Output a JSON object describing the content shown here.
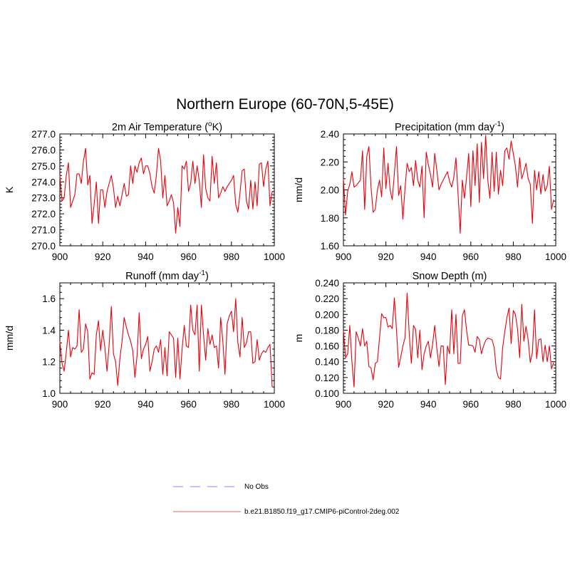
{
  "figure": {
    "title": "Northern Europe (60-70N,5-45E)"
  },
  "legend": {
    "entries": [
      {
        "label": "No Obs",
        "color": "#9a9af0",
        "dash": true
      },
      {
        "label": "b.e21.B1850.f19_g17.CMIP6-piControl-2deg.002",
        "color": "#f08080",
        "dash": false
      }
    ]
  },
  "series_color": "#e8000b",
  "chart_data": [
    {
      "type": "line",
      "title_main": "2m Air Temperature (",
      "title_sup": "o",
      "title_end": "K)",
      "ylabel": "K",
      "xlim": [
        900,
        1000
      ],
      "ylim": [
        270.0,
        277.0
      ],
      "xticks": [
        900,
        920,
        940,
        960,
        980,
        1000
      ],
      "yticks": [
        270.0,
        271.0,
        272.0,
        273.0,
        274.0,
        275.0,
        276.0,
        277.0
      ],
      "ydecimals": 1,
      "x_start": 900,
      "values": [
        274.4,
        272.8,
        273.0,
        274.4,
        275.2,
        272.4,
        272.8,
        273.2,
        274.5,
        274.5,
        273.9,
        275.3,
        276.1,
        273.8,
        274.4,
        271.4,
        272.6,
        274.0,
        271.4,
        273.5,
        273.5,
        272.4,
        273.4,
        273.9,
        274.4,
        273.6,
        272.4,
        273.1,
        272.5,
        273.2,
        273.9,
        273.1,
        273.2,
        275.0,
        273.9,
        275.0,
        274.6,
        275.2,
        275.5,
        274.5,
        275.0,
        275.0,
        274.5,
        273.7,
        273.3,
        274.4,
        276.1,
        275.3,
        273.0,
        274.4,
        272.5,
        272.8,
        273.2,
        272.7,
        270.8,
        272.4,
        271.2,
        275.0,
        274.8,
        275.3,
        273.4,
        273.9,
        275.3,
        273.9,
        275.0,
        274.1,
        272.4,
        275.7,
        273.6,
        273.0,
        272.8,
        275.6,
        273.9,
        275.2,
        273.0,
        273.3,
        273.7,
        273.4,
        273.7,
        273.9,
        274.1,
        274.4,
        272.6,
        272.1,
        273.3,
        274.7,
        274.8,
        272.8,
        272.3,
        274.1,
        272.3,
        274.0,
        272.5,
        275.1,
        275.2,
        273.7,
        274.8,
        275.3,
        272.5,
        273.4
      ]
    },
    {
      "type": "line",
      "title_main": "Precipitation (mm day",
      "title_sup": "-1",
      "title_end": ")",
      "ylabel": "mm/d",
      "xlim": [
        900,
        1000
      ],
      "ylim": [
        1.6,
        2.4
      ],
      "xticks": [
        900,
        920,
        940,
        960,
        980,
        1000
      ],
      "yticks": [
        1.6,
        1.8,
        2.0,
        2.2,
        2.4
      ],
      "ydecimals": 2,
      "x_start": 900,
      "values": [
        2.08,
        1.82,
        1.99,
        2.04,
        2.13,
        2.02,
        2.03,
        2.05,
        2.07,
        2.28,
        1.86,
        2.24,
        2.31,
        2.02,
        1.84,
        1.86,
        2.0,
        2.07,
        1.95,
        2.3,
        2.01,
        2.19,
        2.0,
        1.93,
        2.12,
        2.31,
        1.96,
        2.03,
        1.79,
        2.01,
        2.19,
        2.13,
        2.16,
        2.03,
        2.21,
        2.07,
        2.02,
        2.17,
        1.8,
        2.27,
        2.18,
        2.11,
        2.02,
        2.26,
        2.14,
        2.0,
        2.04,
        2.07,
        2.1,
        2.13,
        2.06,
        2.02,
        2.09,
        2.23,
        1.97,
        1.69,
        2.07,
        1.94,
        2.09,
        2.26,
        1.88,
        2.28,
        2.03,
        2.33,
        1.91,
        2.34,
        2.08,
        2.39,
        2.07,
        1.94,
        2.27,
        1.99,
        2.27,
        1.97,
        2.14,
        2.03,
        2.28,
        2.3,
        2.22,
        2.35,
        2.26,
        2.17,
        2.02,
        2.23,
        2.08,
        2.13,
        2.19,
        2.08,
        2.04,
        1.76,
        2.14,
        2.0,
        2.13,
        1.97,
        2.11,
        1.99,
        2.03,
        2.17,
        1.86,
        1.93
      ]
    },
    {
      "type": "line",
      "title_main": "Runoff (mm day",
      "title_sup": "-1",
      "title_end": ")",
      "ylabel": "mm/d",
      "xlim": [
        900,
        1000
      ],
      "ylim": [
        1.0,
        1.7
      ],
      "xticks": [
        900,
        920,
        940,
        960,
        980,
        1000
      ],
      "yticks": [
        1.0,
        1.2,
        1.4,
        1.6
      ],
      "ydecimals": 1,
      "x_start": 900,
      "values": [
        1.33,
        1.19,
        1.14,
        1.26,
        1.4,
        1.23,
        1.29,
        1.28,
        1.3,
        1.53,
        1.26,
        1.28,
        1.44,
        1.39,
        1.09,
        1.13,
        1.12,
        1.37,
        1.46,
        1.27,
        1.4,
        1.29,
        1.14,
        1.31,
        1.55,
        1.25,
        1.2,
        1.05,
        1.22,
        1.33,
        1.48,
        1.42,
        1.37,
        1.33,
        1.27,
        1.1,
        1.24,
        1.51,
        1.22,
        1.28,
        1.31,
        1.36,
        1.14,
        1.2,
        1.28,
        1.3,
        1.26,
        1.34,
        1.12,
        1.29,
        1.11,
        1.39,
        1.37,
        1.35,
        1.1,
        1.35,
        1.09,
        1.28,
        1.43,
        1.3,
        1.29,
        1.56,
        1.4,
        1.37,
        1.56,
        1.14,
        1.56,
        1.37,
        1.21,
        1.41,
        1.31,
        1.37,
        1.29,
        1.3,
        1.16,
        1.48,
        1.33,
        1.12,
        1.44,
        1.49,
        1.52,
        1.39,
        1.6,
        1.32,
        1.23,
        1.48,
        1.29,
        1.32,
        1.39,
        1.39,
        1.19,
        1.2,
        1.34,
        1.21,
        1.25,
        1.27,
        1.26,
        1.29,
        1.31,
        1.04
      ]
    },
    {
      "type": "line",
      "title_main": "Snow Depth (m)",
      "title_sup": "",
      "title_end": "",
      "ylabel": "m",
      "xlim": [
        900,
        1000
      ],
      "ylim": [
        0.1,
        0.24
      ],
      "xticks": [
        900,
        920,
        940,
        960,
        980,
        1000
      ],
      "yticks": [
        0.1,
        0.12,
        0.14,
        0.16,
        0.18,
        0.2,
        0.22,
        0.24
      ],
      "ydecimals": 3,
      "x_start": 900,
      "values": [
        0.18,
        0.145,
        0.15,
        0.186,
        0.14,
        0.108,
        0.178,
        0.17,
        0.16,
        0.182,
        0.16,
        0.166,
        0.134,
        0.132,
        0.117,
        0.138,
        0.14,
        0.17,
        0.201,
        0.196,
        0.196,
        0.184,
        0.186,
        0.182,
        0.221,
        0.18,
        0.133,
        0.146,
        0.16,
        0.17,
        0.227,
        0.175,
        0.138,
        0.186,
        0.181,
        0.145,
        0.18,
        0.13,
        0.15,
        0.16,
        0.166,
        0.145,
        0.162,
        0.186,
        0.157,
        0.134,
        0.16,
        0.16,
        0.111,
        0.16,
        0.15,
        0.206,
        0.15,
        0.2,
        0.138,
        0.138,
        0.198,
        0.206,
        0.18,
        0.161,
        0.161,
        0.16,
        0.152,
        0.172,
        0.168,
        0.15,
        0.16,
        0.167,
        0.17,
        0.169,
        0.168,
        0.158,
        0.13,
        0.12,
        0.118,
        0.158,
        0.178,
        0.196,
        0.208,
        0.163,
        0.205,
        0.2,
        0.182,
        0.145,
        0.213,
        0.166,
        0.185,
        0.168,
        0.139,
        0.152,
        0.206,
        0.144,
        0.168,
        0.169,
        0.14,
        0.161,
        0.14,
        0.16,
        0.131,
        0.139
      ]
    }
  ]
}
